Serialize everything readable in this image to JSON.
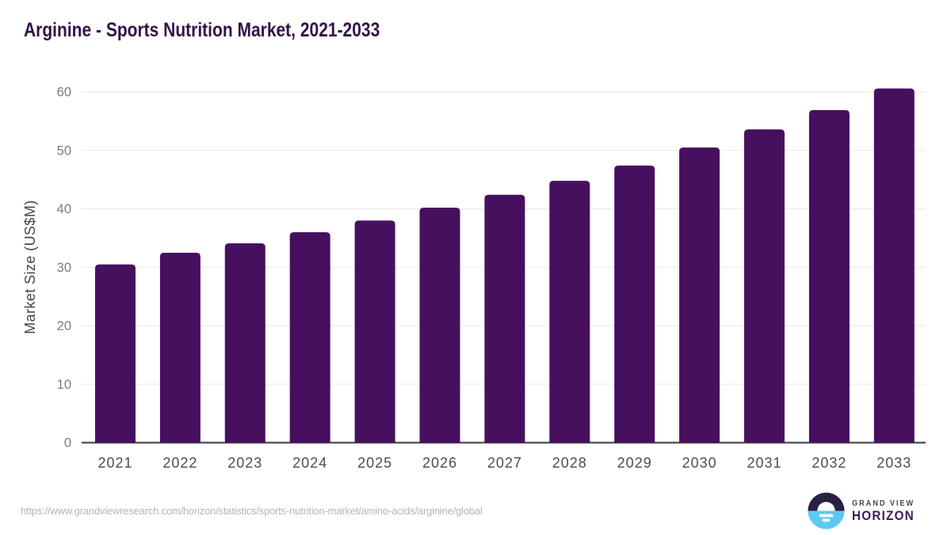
{
  "title": "Arginine - Sports Nutrition Market, 2021-2033",
  "chart_data": {
    "type": "bar",
    "title": "Arginine - Sports Nutrition Market, 2021-2033",
    "categories": [
      "2021",
      "2022",
      "2023",
      "2024",
      "2025",
      "2026",
      "2027",
      "2028",
      "2029",
      "2030",
      "2031",
      "2032",
      "2033"
    ],
    "values": [
      30.5,
      32.5,
      34.1,
      36.0,
      38.0,
      40.2,
      42.4,
      44.8,
      47.4,
      50.5,
      53.6,
      56.9,
      60.6
    ],
    "xlabel": "",
    "ylabel": "Market Size (US$M)",
    "yticks": [
      0,
      10,
      20,
      30,
      40,
      50,
      60
    ],
    "ylim": [
      0,
      63
    ],
    "grid": true,
    "legend_position": "none",
    "bar_color": "#47105E"
  },
  "colors": {
    "title": "#331349",
    "axis_line": "#3a3a3a",
    "grid_line": "#e9e9e9",
    "y_tick_label": "#7b7b7b",
    "x_tick_label": "#4d4d4d",
    "y_axis_label": "#454545",
    "footer_text": "#b5b5b5",
    "logo_circle_top": "#2b1f42",
    "logo_circle_bottom": "#5ec8f2"
  },
  "footer": {
    "url": "https://www.grandviewresearch.com/horizon/statistics/sports-nutrition-market/amino-acids/arginine/global"
  },
  "logo": {
    "line1": "GRAND VIEW",
    "line2": "HORIZON"
  }
}
